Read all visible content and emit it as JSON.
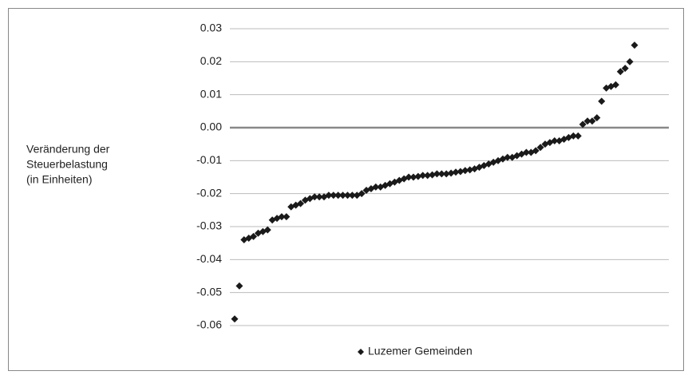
{
  "chart_data": {
    "type": "scatter",
    "y_label": [
      "Veränderung der",
      "Steuerbelastung",
      "(in Einheiten)"
    ],
    "series": [
      {
        "name": "Luzemer Gemeinden",
        "color": "#1a1a1a",
        "values": [
          -0.058,
          -0.048,
          -0.034,
          -0.0335,
          -0.033,
          -0.032,
          -0.0315,
          -0.031,
          -0.028,
          -0.0275,
          -0.027,
          -0.027,
          -0.024,
          -0.0235,
          -0.023,
          -0.022,
          -0.0215,
          -0.021,
          -0.021,
          -0.021,
          -0.0205,
          -0.0205,
          -0.0205,
          -0.0205,
          -0.0205,
          -0.0205,
          -0.0205,
          -0.02,
          -0.019,
          -0.0185,
          -0.018,
          -0.018,
          -0.0175,
          -0.017,
          -0.0165,
          -0.016,
          -0.0155,
          -0.015,
          -0.015,
          -0.0148,
          -0.0145,
          -0.0145,
          -0.0143,
          -0.014,
          -0.014,
          -0.014,
          -0.0138,
          -0.0135,
          -0.0133,
          -0.013,
          -0.0128,
          -0.0125,
          -0.012,
          -0.0115,
          -0.011,
          -0.0105,
          -0.01,
          -0.0095,
          -0.009,
          -0.009,
          -0.0085,
          -0.008,
          -0.0075,
          -0.0075,
          -0.007,
          -0.006,
          -0.005,
          -0.0045,
          -0.004,
          -0.004,
          -0.0035,
          -0.003,
          -0.0025,
          -0.0025,
          0.001,
          0.002,
          0.002,
          0.003,
          0.008,
          0.012,
          0.0125,
          0.013,
          0.017,
          0.018,
          0.02,
          0.025
        ]
      }
    ],
    "ylim": [
      -0.06,
      0.03
    ],
    "yticks": [
      0.03,
      0.02,
      0.01,
      {
        "value": 0,
        "label": "0.00"
      },
      -0.01,
      -0.02,
      -0.03,
      -0.04,
      -0.05,
      -0.06
    ],
    "grid": true,
    "legend": "bottom"
  }
}
